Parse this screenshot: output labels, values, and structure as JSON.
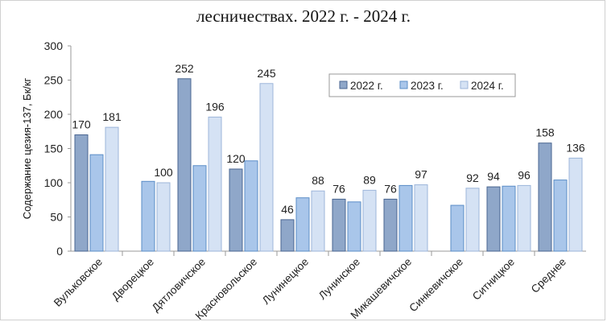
{
  "chart_data": {
    "type": "bar",
    "title_lines": [
      "",
      "лесничествах.  2022 г. - 2024 г."
    ],
    "ylabel": "Содержание цезия-137, Бк/кг",
    "xlabel": "",
    "ylim": [
      0,
      300
    ],
    "yticks": [
      0,
      50,
      100,
      150,
      200,
      250,
      300
    ],
    "grid": false,
    "legend_position": "upper-center-right",
    "categories": [
      "Вульковское",
      "Дворецкое",
      "Дятловичское",
      "Красновольское",
      "Лунинецкое",
      "Лунинское",
      "Микашевичское",
      "Синкевичское",
      "Ситницкое",
      "Среднее"
    ],
    "series": [
      {
        "name": "2022 г.",
        "values": [
          170,
          null,
          252,
          120,
          46,
          76,
          76,
          null,
          94,
          158
        ],
        "labeled": [
          true,
          false,
          true,
          true,
          true,
          true,
          true,
          false,
          true,
          true
        ],
        "color": "#8fa7c9",
        "edge": "#4a6691"
      },
      {
        "name": "2023 г.",
        "values": [
          141,
          102,
          125,
          132,
          78,
          72,
          96,
          67,
          95,
          104
        ],
        "labeled": [
          false,
          false,
          false,
          false,
          false,
          false,
          false,
          false,
          false,
          false
        ],
        "color": "#a9c6ea",
        "edge": "#5b8dc7"
      },
      {
        "name": "2024 г.",
        "values": [
          181,
          100,
          196,
          245,
          88,
          89,
          97,
          92,
          96,
          136
        ],
        "labeled": [
          true,
          true,
          true,
          true,
          true,
          true,
          true,
          true,
          true,
          true
        ],
        "color": "#d5e2f4",
        "edge": "#9db6da"
      }
    ]
  }
}
